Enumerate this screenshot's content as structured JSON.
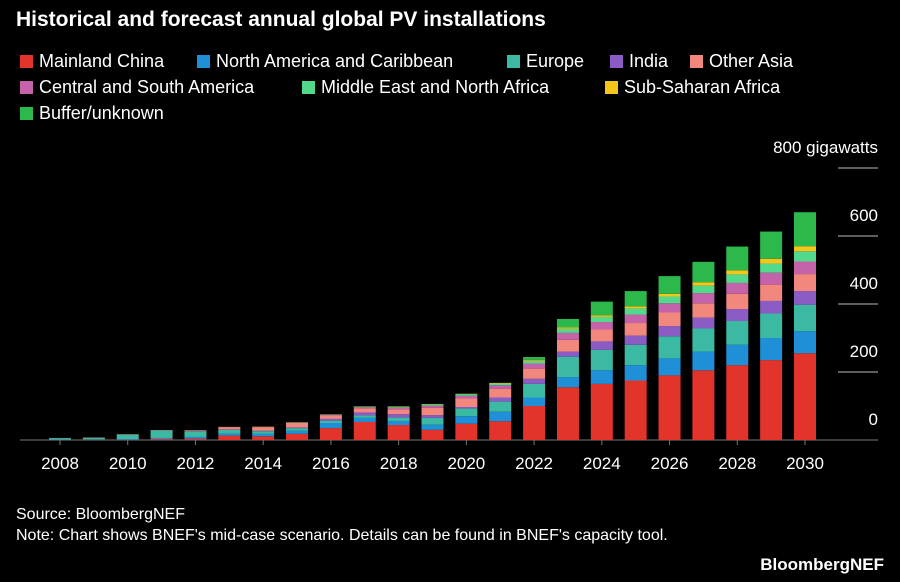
{
  "chart_data": {
    "type": "stacked_bar",
    "title": "Historical and forecast annual global PV installations",
    "categories": [
      "2008",
      null,
      "2010",
      null,
      "2012",
      null,
      "2014",
      null,
      "2016",
      null,
      "2018",
      null,
      "2020",
      null,
      "2022",
      null,
      "2024",
      null,
      "2026",
      null,
      "2028",
      null,
      "2030"
    ],
    "series": [
      {
        "name": "Mainland China",
        "color": "#e3342b",
        "values": [
          0.5,
          1,
          1,
          3,
          4,
          13,
          11,
          18,
          35,
          53,
          44,
          30,
          48,
          55,
          100,
          155,
          165,
          175,
          190,
          205,
          220,
          235,
          255
        ]
      },
      {
        "name": "North America and Caribbean",
        "color": "#1f8fd8",
        "values": [
          1,
          1,
          2,
          3,
          5,
          6,
          7,
          9,
          15,
          12,
          12,
          15,
          22,
          28,
          25,
          30,
          40,
          45,
          50,
          55,
          60,
          65,
          65
        ]
      },
      {
        "name": "Europe",
        "color": "#3cb9a2",
        "values": [
          4,
          5,
          13,
          22,
          17,
          11,
          8,
          8,
          7,
          7,
          10,
          20,
          23,
          30,
          40,
          60,
          60,
          60,
          65,
          68,
          70,
          72,
          78
        ]
      },
      {
        "name": "India",
        "color": "#8a5cc4",
        "values": [
          0,
          0,
          0,
          0.5,
          1,
          1,
          1,
          2,
          5,
          9,
          10,
          8,
          4,
          12,
          15,
          15,
          25,
          27,
          30,
          32,
          35,
          37,
          40
        ]
      },
      {
        "name": "Other Asia",
        "color": "#f2877e",
        "values": [
          0.5,
          0.5,
          1,
          1,
          2,
          7,
          11,
          13,
          10,
          12,
          14,
          22,
          25,
          26,
          30,
          35,
          35,
          37,
          40,
          42,
          45,
          48,
          50
        ]
      },
      {
        "name": "Central and South America",
        "color": "#c462aa",
        "values": [
          0,
          0,
          0,
          0,
          0.2,
          0.3,
          0.5,
          1,
          2,
          3,
          5,
          6,
          8,
          10,
          15,
          20,
          22,
          25,
          27,
          30,
          32,
          35,
          37
        ]
      },
      {
        "name": "Middle East and North Africa",
        "color": "#52d98c",
        "values": [
          0,
          0,
          0,
          0,
          0,
          0.2,
          0.5,
          1,
          1,
          2,
          3,
          4,
          5,
          5,
          8,
          12,
          15,
          18,
          20,
          22,
          25,
          27,
          30
        ]
      },
      {
        "name": "Sub-Saharan Africa",
        "color": "#f5c518",
        "values": [
          0,
          0,
          0,
          0,
          0,
          0.2,
          0.5,
          0.5,
          0.5,
          1,
          1,
          1,
          1,
          2,
          3,
          4,
          5,
          6,
          8,
          10,
          12,
          14,
          15
        ]
      },
      {
        "name": "Buffer/unknown",
        "color": "#2db84b",
        "values": [
          0,
          0,
          0,
          0,
          0,
          0,
          0,
          0,
          0,
          0,
          0,
          0,
          0,
          0,
          8,
          25,
          40,
          45,
          52,
          60,
          70,
          80,
          100
        ]
      }
    ],
    "ylim": [
      0,
      800
    ],
    "yticks": [
      0,
      200,
      400,
      600,
      {
        "value": 800,
        "label": "800 gigawatts"
      }
    ],
    "source": "Source: BloombergNEF",
    "note": "Note: Chart shows BNEF's mid-case scenario. Details can be found in BNEF's capacity tool.",
    "logo": "BloombergNEF"
  }
}
